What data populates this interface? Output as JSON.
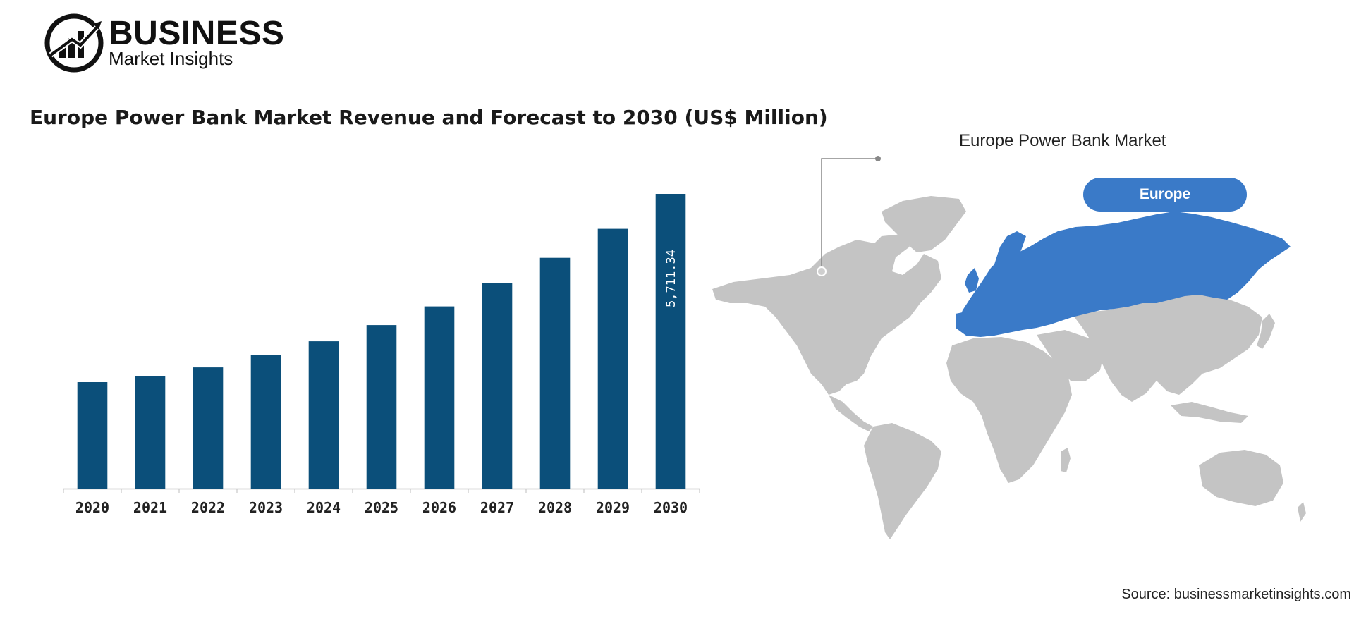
{
  "logo": {
    "brand": "BUSINESS",
    "sub": "Market Insights",
    "icon": "bar-chart-globe-logo-icon"
  },
  "chart_data": {
    "type": "bar",
    "title": "Europe Power Bank Market Revenue and Forecast to 2030 (US$ Million)",
    "categories": [
      "2020",
      "2021",
      "2022",
      "2023",
      "2024",
      "2025",
      "2026",
      "2027",
      "2028",
      "2029",
      "2030"
    ],
    "values": [
      2063,
      2186,
      2349,
      2595,
      2854,
      3168,
      3531,
      3979,
      4472,
      5033,
      5711.34
    ],
    "data_labels": [
      "",
      "",
      "",
      "",
      "",
      "",
      "",
      "",
      "",
      "",
      "5,711.34"
    ],
    "xlabel": "",
    "ylabel": "",
    "ylim": [
      0,
      5711.34
    ],
    "grid": false,
    "bar_color": "#0b4f7a"
  },
  "map": {
    "title": "Europe Power Bank Market",
    "highlight_label": "Europe",
    "land_color": "#c4c4c4",
    "highlight_color": "#3a7ac8",
    "pill_color": "#3a7ac8"
  },
  "source": "Source: businessmarketinsights.com"
}
